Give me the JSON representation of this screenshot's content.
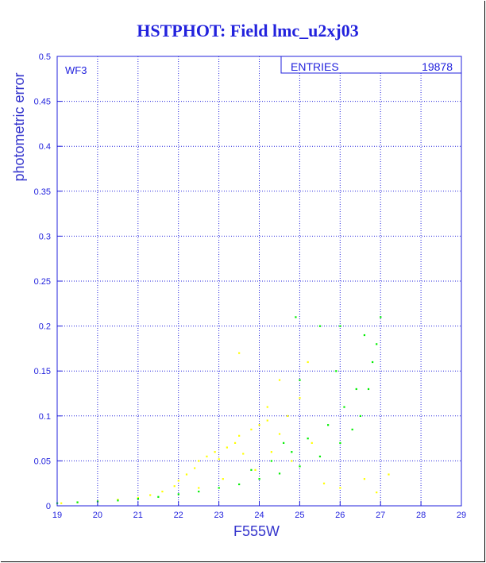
{
  "page": {
    "background": "#000000",
    "frame_color": "#ffffff"
  },
  "chart_data": {
    "type": "scatter",
    "title": "HSTPHOT: Field lmc_u2xj03",
    "xlabel": "F555W",
    "ylabel": "photometric error",
    "xlim": [
      19,
      29
    ],
    "ylim": [
      0,
      0.5
    ],
    "x_ticks": [
      "19",
      "20",
      "21",
      "22",
      "23",
      "24",
      "25",
      "26",
      "27",
      "28",
      "29"
    ],
    "y_ticks": [
      "0",
      "0.05",
      "0.1",
      "0.15",
      "0.2",
      "0.25",
      "0.3",
      "0.35",
      "0.4",
      "0.45",
      "0.5"
    ],
    "grid": true,
    "panel_label": "WF3",
    "stats": {
      "label": "ENTRIES",
      "value": "19878"
    },
    "colors": {
      "background": "#ffffff",
      "axis": "#2222dd",
      "grid": "#2222dd",
      "title": "#2222dd"
    },
    "series": [
      {
        "color": "#ffff00",
        "points": [
          [
            19.1,
            0.003
          ],
          [
            19.5,
            0.004
          ],
          [
            20.0,
            0.005
          ],
          [
            20.5,
            0.007
          ],
          [
            21.0,
            0.009
          ],
          [
            21.3,
            0.012
          ],
          [
            21.6,
            0.016
          ],
          [
            21.9,
            0.022
          ],
          [
            22.0,
            0.028
          ],
          [
            22.2,
            0.035
          ],
          [
            22.4,
            0.042
          ],
          [
            22.5,
            0.05
          ],
          [
            22.7,
            0.055
          ],
          [
            22.9,
            0.06
          ],
          [
            23.0,
            0.052
          ],
          [
            23.2,
            0.065
          ],
          [
            23.4,
            0.07
          ],
          [
            23.5,
            0.078
          ],
          [
            23.6,
            0.058
          ],
          [
            23.8,
            0.085
          ],
          [
            24.0,
            0.09
          ],
          [
            24.2,
            0.095
          ],
          [
            24.3,
            0.06
          ],
          [
            24.5,
            0.08
          ],
          [
            24.7,
            0.1
          ],
          [
            23.5,
            0.17
          ],
          [
            24.5,
            0.14
          ],
          [
            25.0,
            0.12
          ],
          [
            25.2,
            0.16
          ],
          [
            25.6,
            0.025
          ],
          [
            26.0,
            0.02
          ],
          [
            26.6,
            0.03
          ],
          [
            27.2,
            0.035
          ],
          [
            26.9,
            0.015
          ],
          [
            22.5,
            0.02
          ],
          [
            23.1,
            0.03
          ],
          [
            23.9,
            0.04
          ],
          [
            24.8,
            0.05
          ],
          [
            25.3,
            0.07
          ],
          [
            24.2,
            0.11
          ]
        ]
      },
      {
        "color": "#00ee00",
        "points": [
          [
            19.0,
            0.003
          ],
          [
            19.5,
            0.004
          ],
          [
            20.0,
            0.005
          ],
          [
            20.5,
            0.006
          ],
          [
            21.0,
            0.008
          ],
          [
            21.5,
            0.01
          ],
          [
            22.0,
            0.013
          ],
          [
            22.5,
            0.016
          ],
          [
            23.0,
            0.02
          ],
          [
            23.5,
            0.024
          ],
          [
            24.0,
            0.03
          ],
          [
            24.5,
            0.036
          ],
          [
            25.0,
            0.044
          ],
          [
            25.5,
            0.055
          ],
          [
            26.0,
            0.07
          ],
          [
            26.3,
            0.085
          ],
          [
            26.5,
            0.1
          ],
          [
            26.7,
            0.13
          ],
          [
            26.8,
            0.16
          ],
          [
            27.0,
            0.21
          ],
          [
            24.3,
            0.05
          ],
          [
            24.8,
            0.06
          ],
          [
            25.2,
            0.075
          ],
          [
            25.7,
            0.09
          ],
          [
            26.1,
            0.11
          ],
          [
            26.4,
            0.13
          ],
          [
            25.0,
            0.14
          ],
          [
            24.9,
            0.21
          ],
          [
            26.0,
            0.2
          ],
          [
            25.5,
            0.2
          ],
          [
            26.6,
            0.19
          ],
          [
            26.9,
            0.18
          ],
          [
            23.8,
            0.04
          ],
          [
            24.6,
            0.07
          ],
          [
            25.9,
            0.15
          ]
        ]
      }
    ]
  }
}
